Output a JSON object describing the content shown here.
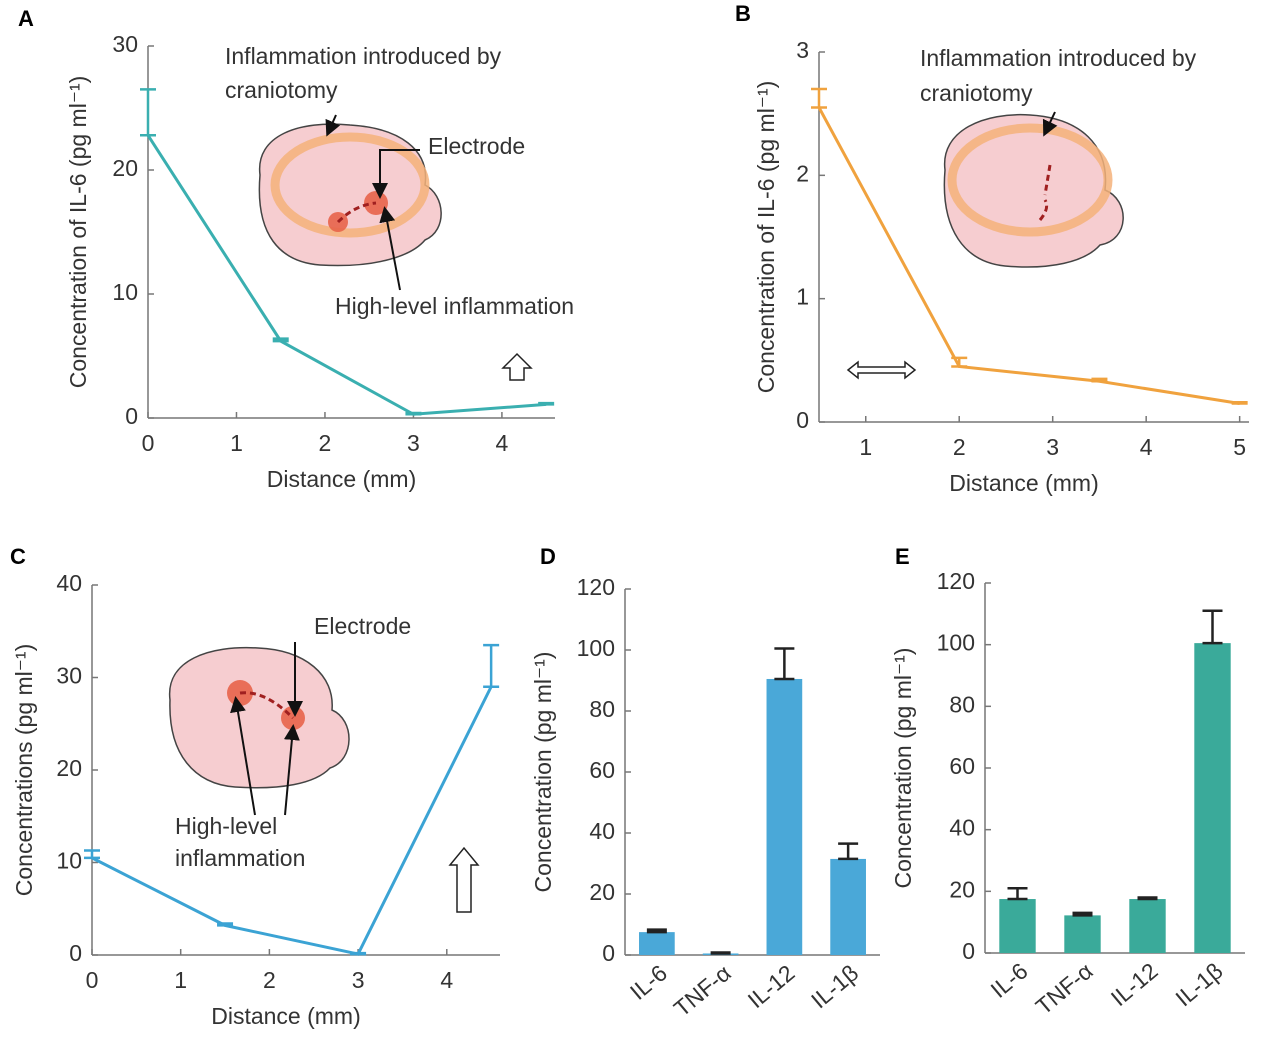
{
  "chart_data": [
    {
      "type": "line",
      "panel": "A",
      "x_label": "Distance (mm)",
      "y_label": "Concentration of IL-6 (pg ml⁻¹)",
      "x": [
        0,
        1.5,
        3,
        4.5
      ],
      "values": [
        22.8,
        6.2,
        0.3,
        1.1
      ],
      "errors": [
        3.7,
        0.2,
        0.1,
        0.1
      ],
      "color": "#3aafb0",
      "xlim": [
        0,
        4.6
      ],
      "xticks": [
        0,
        1,
        2,
        3,
        4
      ],
      "ylim": [
        0,
        30
      ],
      "yticks": [
        0,
        10,
        20,
        30
      ],
      "annotations": [
        "Inflammation introduced by",
        "craniotomy",
        "Electrode",
        "High-level inflammation"
      ]
    },
    {
      "type": "line",
      "panel": "B",
      "x_label": "Distance (mm)",
      "y_label": "Concentration of IL-6 (pg ml⁻¹)",
      "x": [
        0.5,
        2,
        3.5,
        5
      ],
      "values": [
        2.55,
        0.45,
        0.33,
        0.15
      ],
      "errors": [
        0.15,
        0.07,
        0.02,
        0.01
      ],
      "color": "#f0a23e",
      "xlim": [
        0.5,
        5.1
      ],
      "xticks": [
        1,
        2,
        3,
        4,
        5
      ],
      "ylim": [
        0,
        3
      ],
      "yticks": [
        0,
        1,
        2,
        3
      ],
      "annotations": [
        "Inflammation introduced by",
        "craniotomy"
      ]
    },
    {
      "type": "line",
      "panel": "C",
      "x_label": "Distance (mm)",
      "y_label": "Concentrations (pg ml⁻¹)",
      "x": [
        0,
        1.5,
        3,
        4.5
      ],
      "values": [
        10.5,
        3.2,
        0.1,
        29
      ],
      "errors": [
        0.8,
        0.2,
        0.1,
        4.5
      ],
      "color": "#3ba3d4",
      "xlim": [
        0,
        4.6
      ],
      "xticks": [
        0,
        1,
        2,
        3,
        4
      ],
      "ylim": [
        0,
        40
      ],
      "yticks": [
        0,
        10,
        20,
        30,
        40
      ],
      "annotations": [
        "Electrode",
        "High-level",
        "inflammation"
      ]
    },
    {
      "type": "bar",
      "panel": "D",
      "y_label": "Concentration (pg ml⁻¹)",
      "categories": [
        "IL-6",
        "TNF-α",
        "IL-12",
        "IL-1β"
      ],
      "values": [
        7.5,
        0.5,
        90.5,
        31.5
      ],
      "errors": [
        0.8,
        0.3,
        10,
        5
      ],
      "color": "#4aa8d8",
      "ylim": [
        0,
        120
      ],
      "yticks": [
        0,
        20,
        40,
        60,
        80,
        100,
        120
      ]
    },
    {
      "type": "bar",
      "panel": "E",
      "y_label": "Concentration (pg ml⁻¹)",
      "categories": [
        "IL-6",
        "TNF-α",
        "IL-12",
        "IL-1β"
      ],
      "values": [
        17.5,
        12.2,
        17.5,
        100.5
      ],
      "errors": [
        3.5,
        0.8,
        0.5,
        10.5
      ],
      "color": "#3aaa9a",
      "ylim": [
        0,
        120
      ],
      "yticks": [
        0,
        20,
        40,
        60,
        80,
        100,
        120
      ]
    }
  ]
}
